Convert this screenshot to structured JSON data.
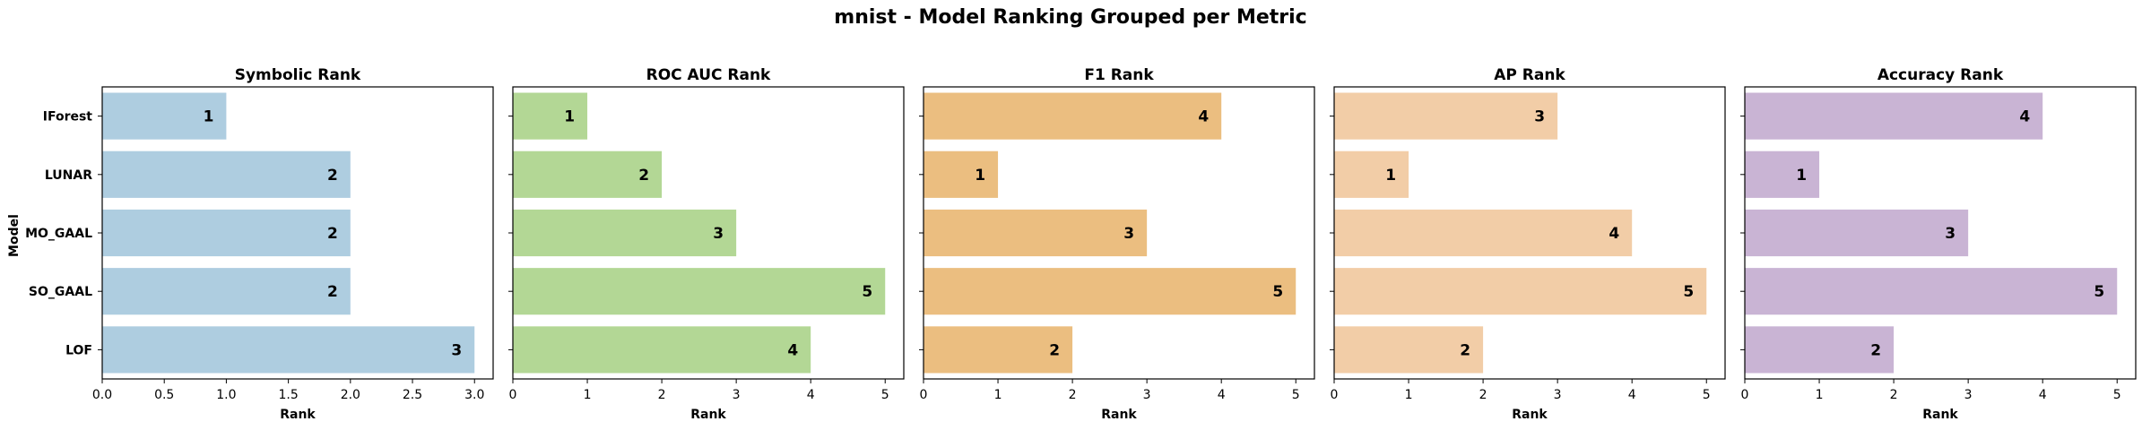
{
  "chart_data": {
    "title": "mnist - Model Ranking Grouped per Metric",
    "ylabel": "Model",
    "categories": [
      "IForest",
      "LUNAR",
      "MO_GAAL",
      "SO_GAAL",
      "LOF"
    ],
    "panels": [
      {
        "type": "bar",
        "orientation": "horizontal",
        "title": "Symbolic Rank",
        "xlabel": "Rank",
        "color": "#aecde0",
        "xlim": [
          0,
          3.15
        ],
        "xticks": [
          0.0,
          0.5,
          1.0,
          1.5,
          2.0,
          2.5,
          3.0
        ],
        "xtick_labels": [
          "0.0",
          "0.5",
          "1.0",
          "1.5",
          "2.0",
          "2.5",
          "3.0"
        ],
        "values": [
          1,
          2,
          2,
          2,
          3
        ],
        "labels": [
          "1",
          "2",
          "2",
          "2",
          "3"
        ]
      },
      {
        "type": "bar",
        "orientation": "horizontal",
        "title": "ROC AUC Rank",
        "xlabel": "Rank",
        "color": "#b3d795",
        "xlim": [
          0,
          5.25
        ],
        "xticks": [
          0,
          1,
          2,
          3,
          4,
          5
        ],
        "xtick_labels": [
          "0",
          "1",
          "2",
          "3",
          "4",
          "5"
        ],
        "values": [
          1,
          2,
          3,
          5,
          4
        ],
        "labels": [
          "1",
          "2",
          "3",
          "5",
          "4"
        ]
      },
      {
        "type": "bar",
        "orientation": "horizontal",
        "title": "F1 Rank",
        "xlabel": "Rank",
        "color": "#ebbe80",
        "xlim": [
          0,
          5.25
        ],
        "xticks": [
          0,
          1,
          2,
          3,
          4,
          5
        ],
        "xtick_labels": [
          "0",
          "1",
          "2",
          "3",
          "4",
          "5"
        ],
        "values": [
          4,
          1,
          3,
          5,
          2
        ],
        "labels": [
          "4",
          "1",
          "3",
          "5",
          "2"
        ]
      },
      {
        "type": "bar",
        "orientation": "horizontal",
        "title": "AP Rank",
        "xlabel": "Rank",
        "color": "#f2cda7",
        "xlim": [
          0,
          5.25
        ],
        "xticks": [
          0,
          1,
          2,
          3,
          4,
          5
        ],
        "xtick_labels": [
          "0",
          "1",
          "2",
          "3",
          "4",
          "5"
        ],
        "values": [
          3,
          1,
          4,
          5,
          2
        ],
        "labels": [
          "3",
          "1",
          "4",
          "5",
          "2"
        ]
      },
      {
        "type": "bar",
        "orientation": "horizontal",
        "title": "Accuracy Rank",
        "xlabel": "Rank",
        "color": "#c9b4d4",
        "xlim": [
          0,
          5.25
        ],
        "xticks": [
          0,
          1,
          2,
          3,
          4,
          5
        ],
        "xtick_labels": [
          "0",
          "1",
          "2",
          "3",
          "4",
          "5"
        ],
        "values": [
          4,
          1,
          3,
          5,
          2
        ],
        "labels": [
          "4",
          "1",
          "3",
          "5",
          "2"
        ]
      }
    ]
  }
}
